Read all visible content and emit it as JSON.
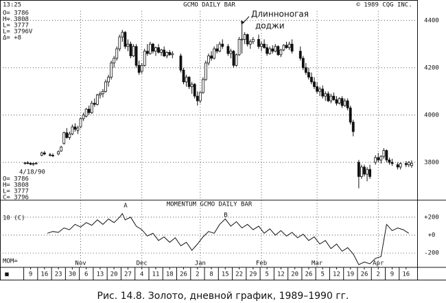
{
  "chart_data": [
    {
      "type": "candlestick",
      "time": "13:25",
      "title": "GCMO DAILY BAR",
      "copyright": "© 1989 CQG INC.",
      "info_top": [
        "O= 3786",
        "H= 3808",
        "L= 3777",
        "L= 3796V",
        "Δ=   +8"
      ],
      "info_bottom": [
        "4/18/90",
        "O= 3786",
        "H= 3808",
        "L= 3777",
        "C= 3796"
      ],
      "annotation": [
        "Длинноногая",
        "доджи"
      ],
      "x": [
        -2,
        -1,
        0,
        1,
        2,
        4,
        5,
        7,
        8,
        10,
        11,
        12,
        13,
        14,
        15,
        16,
        17,
        18,
        19,
        20,
        21,
        22,
        23,
        24,
        25,
        26,
        27,
        28,
        29,
        30,
        31,
        32,
        33,
        34,
        35,
        36,
        37,
        38,
        39,
        40,
        41,
        42,
        43,
        44,
        45,
        46,
        47,
        48,
        49,
        50,
        51,
        54,
        55,
        56,
        57,
        58,
        59,
        60,
        61,
        62,
        63,
        64,
        65,
        66,
        67,
        68,
        69,
        71,
        72,
        73,
        74,
        75,
        76,
        77,
        78,
        79,
        80,
        82,
        83,
        84,
        85,
        86,
        87,
        88,
        89,
        90,
        91,
        92,
        93,
        94,
        97,
        98,
        99,
        100,
        101,
        102,
        103,
        104,
        105,
        106,
        107,
        108,
        109,
        110,
        111,
        112,
        113,
        114,
        115,
        116,
        118,
        119,
        120,
        121,
        122,
        124,
        125,
        126,
        127,
        128,
        129,
        130,
        132,
        133,
        135,
        136,
        137
      ],
      "ohlc": [
        [
          3795,
          3802,
          3790,
          3798
        ],
        [
          3798,
          3805,
          3792,
          3796
        ],
        [
          3796,
          3800,
          3788,
          3792
        ],
        [
          3792,
          3798,
          3785,
          3795
        ],
        [
          3795,
          3800,
          3790,
          3797
        ],
        [
          3830,
          3845,
          3825,
          3840
        ],
        [
          3840,
          3848,
          3830,
          3835
        ],
        [
          3832,
          3840,
          3825,
          3830
        ],
        [
          3830,
          3838,
          3822,
          3828
        ],
        [
          3835,
          3850,
          3830,
          3845
        ],
        [
          3848,
          3870,
          3845,
          3865
        ],
        [
          3880,
          3930,
          3875,
          3925
        ],
        [
          3925,
          3945,
          3900,
          3905
        ],
        [
          3905,
          3930,
          3895,
          3920
        ],
        [
          3920,
          3960,
          3915,
          3950
        ],
        [
          3950,
          3965,
          3930,
          3940
        ],
        [
          3935,
          3955,
          3920,
          3945
        ],
        [
          3950,
          3990,
          3945,
          3985
        ],
        [
          3985,
          4010,
          3975,
          4000
        ],
        [
          3995,
          4030,
          3990,
          4025
        ],
        [
          4025,
          4040,
          4000,
          4010
        ],
        [
          4010,
          4060,
          4005,
          4050
        ],
        [
          4050,
          4070,
          4035,
          4045
        ],
        [
          4045,
          4090,
          4040,
          4085
        ],
        [
          4085,
          4100,
          4070,
          4090
        ],
        [
          4090,
          4110,
          4075,
          4100
        ],
        [
          4100,
          4150,
          4095,
          4140
        ],
        [
          4140,
          4170,
          4120,
          4160
        ],
        [
          4160,
          4230,
          4150,
          4220
        ],
        [
          4220,
          4250,
          4200,
          4240
        ],
        [
          4240,
          4290,
          4230,
          4280
        ],
        [
          4280,
          4340,
          4270,
          4330
        ],
        [
          4330,
          4360,
          4310,
          4350
        ],
        [
          4350,
          4355,
          4280,
          4290
        ],
        [
          4290,
          4320,
          4270,
          4300
        ],
        [
          4300,
          4310,
          4240,
          4250
        ],
        [
          4250,
          4300,
          4245,
          4290
        ],
        [
          4290,
          4300,
          4200,
          4210
        ],
        [
          4210,
          4230,
          4170,
          4180
        ],
        [
          4185,
          4220,
          4175,
          4210
        ],
        [
          4210,
          4280,
          4205,
          4270
        ],
        [
          4270,
          4300,
          4250,
          4260
        ],
        [
          4260,
          4310,
          4255,
          4300
        ],
        [
          4300,
          4305,
          4260,
          4270
        ],
        [
          4270,
          4290,
          4250,
          4285
        ],
        [
          4285,
          4300,
          4260,
          4265
        ],
        [
          4265,
          4280,
          4250,
          4275
        ],
        [
          4275,
          4290,
          4245,
          4250
        ],
        [
          4250,
          4270,
          4240,
          4265
        ],
        [
          4265,
          4275,
          4250,
          4255
        ],
        [
          4255,
          4270,
          4240,
          4260
        ],
        [
          4250,
          4260,
          4180,
          4190
        ],
        [
          4190,
          4200,
          4130,
          4140
        ],
        [
          4140,
          4170,
          4120,
          4160
        ],
        [
          4160,
          4165,
          4110,
          4120
        ],
        [
          4120,
          4140,
          4090,
          4130
        ],
        [
          4130,
          4135,
          4070,
          4080
        ],
        [
          4080,
          4100,
          4040,
          4060
        ],
        [
          4060,
          4100,
          4050,
          4095
        ],
        [
          4095,
          4160,
          4090,
          4150
        ],
        [
          4150,
          4230,
          4145,
          4220
        ],
        [
          4220,
          4260,
          4210,
          4250
        ],
        [
          4250,
          4270,
          4230,
          4240
        ],
        [
          4240,
          4290,
          4235,
          4280
        ],
        [
          4280,
          4300,
          4260,
          4270
        ],
        [
          4270,
          4310,
          4265,
          4300
        ],
        [
          4300,
          4320,
          4280,
          4290
        ],
        [
          4290,
          4300,
          4250,
          4260
        ],
        [
          4260,
          4280,
          4240,
          4270
        ],
        [
          4270,
          4275,
          4200,
          4210
        ],
        [
          4210,
          4260,
          4205,
          4255
        ],
        [
          4255,
          4330,
          4250,
          4320
        ],
        [
          4320,
          4390,
          4260,
          4321
        ],
        [
          4320,
          4350,
          4300,
          4340
        ],
        [
          4340,
          4345,
          4290,
          4300
        ],
        [
          4300,
          4320,
          4280,
          4310
        ],
        [
          4310,
          4330,
          4300,
          4320
        ],
        [
          4320,
          4340,
          4280,
          4290
        ],
        [
          4290,
          4310,
          4270,
          4300
        ],
        [
          4300,
          4320,
          4280,
          4285
        ],
        [
          4285,
          4300,
          4250,
          4260
        ],
        [
          4260,
          4290,
          4255,
          4280
        ],
        [
          4280,
          4295,
          4260,
          4270
        ],
        [
          4270,
          4300,
          4265,
          4290
        ],
        [
          4290,
          4295,
          4250,
          4255
        ],
        [
          4255,
          4280,
          4245,
          4275
        ],
        [
          4275,
          4300,
          4270,
          4295
        ],
        [
          4295,
          4310,
          4280,
          4285
        ],
        [
          4285,
          4310,
          4275,
          4300
        ],
        [
          4300,
          4320,
          4260,
          4270
        ],
        [
          4270,
          4290,
          4230,
          4240
        ],
        [
          4240,
          4250,
          4190,
          4200
        ],
        [
          4200,
          4220,
          4170,
          4180
        ],
        [
          4180,
          4200,
          4150,
          4160
        ],
        [
          4160,
          4180,
          4130,
          4140
        ],
        [
          4140,
          4160,
          4110,
          4120
        ],
        [
          4120,
          4140,
          4090,
          4100
        ],
        [
          4100,
          4120,
          4080,
          4110
        ],
        [
          4110,
          4125,
          4070,
          4080
        ],
        [
          4080,
          4100,
          4060,
          4090
        ],
        [
          4090,
          4100,
          4055,
          4060
        ],
        [
          4060,
          4090,
          4050,
          4080
        ],
        [
          4080,
          4095,
          4060,
          4065
        ],
        [
          4065,
          4080,
          4040,
          4050
        ],
        [
          4050,
          4075,
          4045,
          4070
        ],
        [
          4070,
          4080,
          4030,
          4040
        ],
        [
          4040,
          4070,
          4035,
          4060
        ],
        [
          4060,
          4070,
          4020,
          4030
        ],
        [
          4030,
          4040,
          3960,
          3970
        ],
        [
          3970,
          3980,
          3910,
          3930
        ],
        [
          3800,
          3810,
          3690,
          3740
        ],
        [
          3740,
          3790,
          3730,
          3780
        ],
        [
          3780,
          3790,
          3740,
          3750
        ],
        [
          3750,
          3780,
          3720,
          3770
        ],
        [
          3770,
          3790,
          3730,
          3740
        ],
        [
          3800,
          3830,
          3790,
          3820
        ],
        [
          3820,
          3840,
          3800,
          3810
        ],
        [
          3810,
          3830,
          3795,
          3825
        ],
        [
          3825,
          3860,
          3815,
          3850
        ],
        [
          3850,
          3855,
          3800,
          3810
        ],
        [
          3810,
          3820,
          3790,
          3800
        ],
        [
          3800,
          3815,
          3785,
          3795
        ],
        [
          3790,
          3800,
          3770,
          3780
        ],
        [
          3780,
          3800,
          3770,
          3795
        ],
        [
          3795,
          3805,
          3780,
          3790
        ],
        [
          3790,
          3805,
          3780,
          3800
        ],
        [
          3786,
          3808,
          3777,
          3796
        ]
      ],
      "xlim": [
        -11,
        139
      ],
      "ylim": [
        3640,
        4440
      ],
      "yticks": [
        3800,
        4000,
        4200,
        4400
      ],
      "grid": true,
      "color": "#111111"
    },
    {
      "type": "line",
      "title": "MOMENTUM GCMO DAILY BAR",
      "period": "10 (C)",
      "value_label": "MOM=",
      "annotations": [
        "A",
        "B"
      ],
      "x": [
        6,
        8,
        10,
        12,
        14,
        16,
        18,
        20,
        22,
        24,
        26,
        28,
        30,
        32,
        33,
        34,
        36,
        38,
        40,
        42,
        44,
        46,
        48,
        50,
        52,
        54,
        56,
        58,
        60,
        62,
        64,
        66,
        68,
        70,
        72,
        74,
        76,
        78,
        80,
        82,
        84,
        86,
        88,
        90,
        92,
        94,
        96,
        98,
        100,
        102,
        104,
        106,
        108,
        110,
        112,
        114,
        116,
        118,
        120,
        122,
        124,
        126,
        128,
        130,
        132,
        134,
        136
      ],
      "values": [
        20,
        40,
        30,
        80,
        60,
        120,
        90,
        140,
        110,
        170,
        120,
        180,
        140,
        200,
        240,
        170,
        200,
        100,
        60,
        -10,
        20,
        -60,
        -20,
        -80,
        -30,
        -120,
        -80,
        -170,
        -100,
        -20,
        40,
        20,
        120,
        180,
        100,
        150,
        80,
        120,
        60,
        100,
        20,
        70,
        0,
        50,
        -10,
        30,
        -30,
        10,
        -60,
        -20,
        -100,
        -60,
        -150,
        -100,
        -180,
        -140,
        -210,
        -330,
        -300,
        -320,
        -260,
        -240,
        120,
        50,
        80,
        60,
        20
      ],
      "xlim": [
        -11,
        139
      ],
      "ylim": [
        -360,
        390
      ],
      "yticks": [
        {
          "value": 200,
          "label": "+200"
        },
        {
          "value": 0,
          "label": "+0"
        },
        -200
      ],
      "grid": true,
      "color": "#111111",
      "month_ticks": [
        {
          "value": 18,
          "label": "Nov"
        },
        {
          "value": 40,
          "label": "Dec"
        },
        {
          "value": 61,
          "label": "Jan"
        },
        {
          "value": 83,
          "label": "Feb"
        },
        {
          "value": 103,
          "label": "Mar"
        },
        {
          "value": 125,
          "label": "Apr"
        }
      ],
      "corner_mark": "■",
      "xticks": [
        {
          "value": 0,
          "label": "9"
        },
        {
          "value": 5,
          "label": "16"
        },
        {
          "value": 10,
          "label": "23"
        },
        {
          "value": 15,
          "label": "30"
        },
        {
          "value": 20,
          "label": "6"
        },
        {
          "value": 25,
          "label": "13"
        },
        {
          "value": 30,
          "label": "20"
        },
        {
          "value": 35,
          "label": "27"
        },
        {
          "value": 40,
          "label": "4"
        },
        {
          "value": 45,
          "label": "11"
        },
        {
          "value": 50,
          "label": "18"
        },
        {
          "value": 55,
          "label": "26"
        },
        {
          "value": 60,
          "label": "2"
        },
        {
          "value": 65,
          "label": "8"
        },
        {
          "value": 70,
          "label": "15"
        },
        {
          "value": 75,
          "label": "22"
        },
        {
          "value": 80,
          "label": "29"
        },
        {
          "value": 85,
          "label": "5"
        },
        {
          "value": 90,
          "label": "12"
        },
        {
          "value": 95,
          "label": "20"
        },
        {
          "value": 100,
          "label": "26"
        },
        {
          "value": 105,
          "label": "5"
        },
        {
          "value": 110,
          "label": "12"
        },
        {
          "value": 115,
          "label": "19"
        },
        {
          "value": 120,
          "label": "26"
        },
        {
          "value": 125,
          "label": "2"
        },
        {
          "value": 130,
          "label": "9"
        },
        {
          "value": 135,
          "label": "16"
        }
      ]
    }
  ],
  "caption": "Рис. 14.8. Золото, дневной график, 1989–1990 гг."
}
